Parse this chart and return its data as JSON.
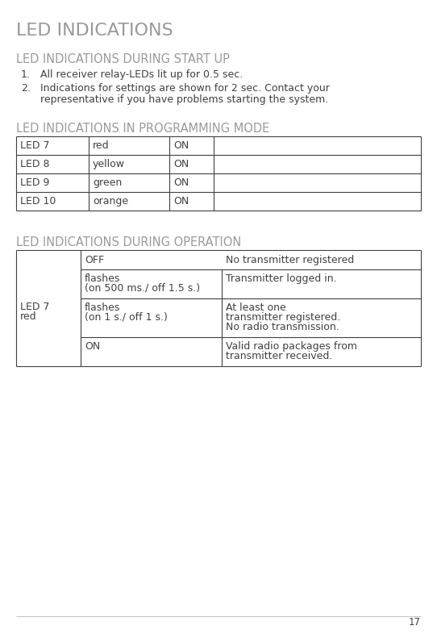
{
  "title": "LED INDICATIONS",
  "section1_title": "LED INDICATIONS DURING START UP",
  "item1": "All receiver relay-LEDs lit up for 0.5 sec.",
  "item2_line1": "Indications for settings are shown for 2 sec. Contact your",
  "item2_line2": "representative if you have problems starting the system.",
  "section2_title": "LED INDICATIONS IN PROGRAMMING MODE",
  "prog_rows": [
    [
      "LED 7",
      "red",
      "ON"
    ],
    [
      "LED 8",
      "yellow",
      "ON"
    ],
    [
      "LED 9",
      "green",
      "ON"
    ],
    [
      "LED 10",
      "orange",
      "ON"
    ]
  ],
  "section3_title": "LED INDICATIONS DURING OPERATION",
  "op_col1_label1": "LED 7",
  "op_col1_label2": "red",
  "op_header_state": "OFF",
  "op_header_desc": "No transmitter registered",
  "op_rows": [
    {
      "state_line1": "flashes",
      "state_line2": "(on 500 ms./ off 1.5 s.)",
      "desc": "Transmitter logged in."
    },
    {
      "state_line1": "flashes",
      "state_line2": "(on 1 s./ off 1 s.)",
      "desc_line1": "At least one",
      "desc_line2": "transmitter registered.",
      "desc_line3": "No radio transmission."
    },
    {
      "state_line1": "ON",
      "state_line2": "",
      "desc_line1": "Valid radio packages from",
      "desc_line2": "transmitter received.",
      "desc_line3": ""
    }
  ],
  "page_number": "17",
  "title_color": "#9a9a9a",
  "section_color": "#9a9a9a",
  "text_color": "#404040",
  "border_color": "#404040",
  "bg_color": "#ffffff"
}
